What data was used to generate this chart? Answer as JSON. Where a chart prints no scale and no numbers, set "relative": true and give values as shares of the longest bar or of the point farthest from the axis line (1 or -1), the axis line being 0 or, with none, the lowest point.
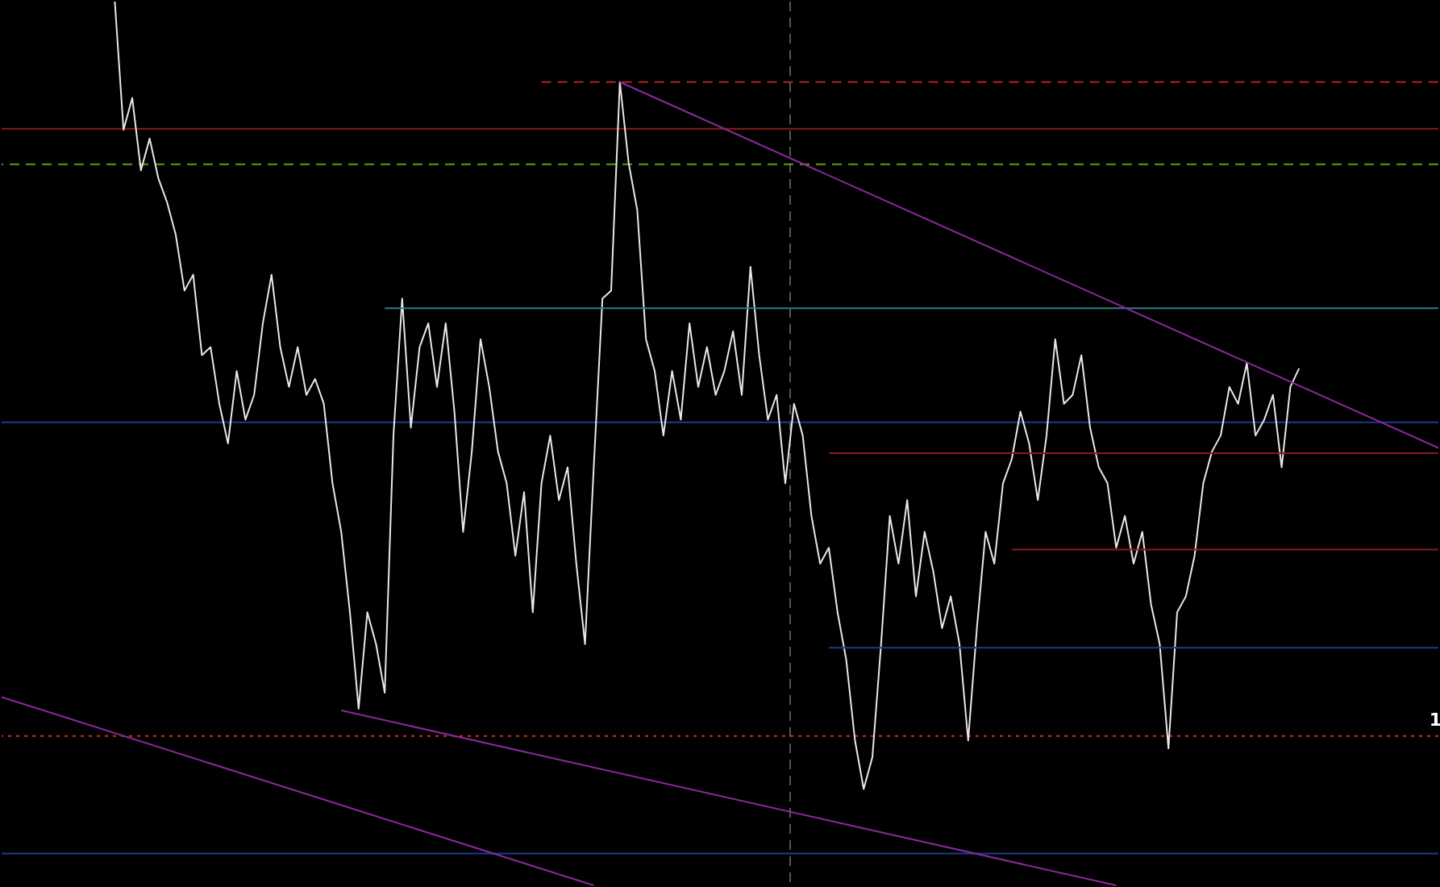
{
  "chart_data": {
    "type": "line",
    "relative": true,
    "line_style": "solid",
    "marker": "none",
    "categories": [
      null,
      null,
      null,
      null,
      null,
      null,
      null,
      null,
      null,
      null,
      null,
      null,
      null,
      null,
      null,
      null,
      null,
      null,
      null,
      null,
      null,
      null,
      null,
      null,
      null,
      null,
      null,
      null,
      null,
      null,
      null,
      null,
      null,
      null,
      null,
      null,
      null,
      null,
      null,
      null,
      null,
      null,
      null,
      null,
      null,
      null,
      null,
      null,
      null,
      null,
      null,
      null,
      null,
      null,
      null,
      null,
      null,
      null,
      null,
      null,
      null,
      null,
      null,
      null,
      null,
      null,
      null,
      null,
      null,
      null,
      null,
      null,
      null,
      null,
      null,
      null,
      null,
      null,
      null,
      null,
      null,
      null,
      null,
      null,
      null,
      null,
      null,
      null,
      null,
      null,
      null,
      null,
      null,
      null,
      null,
      null,
      null,
      null,
      null,
      null,
      null,
      null,
      null,
      null,
      null,
      null,
      null,
      null,
      null,
      null,
      null,
      null,
      null,
      null,
      null,
      null,
      null,
      null,
      null,
      null,
      null,
      null,
      null,
      null,
      null,
      null,
      null,
      null,
      null,
      null,
      null,
      null,
      null,
      null,
      null,
      null,
      null,
      null,
      null,
      null,
      null,
      null,
      null,
      null,
      null,
      null,
      null,
      null,
      null,
      null,
      null,
      null,
      null,
      null,
      null,
      null,
      null,
      null,
      null,
      null,
      null,
      null,
      null,
      null,
      null,
      null
    ],
    "series": [
      {
        "color": "#e8e8e8",
        "values": [
          null,
          null,
          null,
          null,
          null,
          null,
          null,
          null,
          null,
          null,
          null,
          null,
          null,
          1.0,
          0.855,
          0.891,
          0.809,
          0.845,
          0.8,
          0.773,
          0.736,
          0.673,
          0.691,
          0.6,
          0.609,
          0.545,
          0.5,
          0.582,
          0.527,
          0.555,
          0.636,
          0.691,
          0.609,
          0.564,
          0.609,
          0.555,
          0.573,
          0.545,
          0.455,
          0.4,
          0.309,
          0.2,
          0.309,
          0.273,
          0.218,
          0.509,
          0.664,
          0.518,
          0.609,
          0.636,
          0.564,
          0.636,
          0.536,
          0.4,
          0.491,
          0.618,
          0.564,
          0.491,
          0.455,
          0.373,
          0.445,
          0.309,
          0.455,
          0.509,
          0.436,
          0.473,
          0.364,
          0.273,
          0.473,
          0.664,
          0.673,
          0.909,
          0.818,
          0.764,
          0.618,
          0.582,
          0.509,
          0.582,
          0.527,
          0.636,
          0.564,
          0.609,
          0.555,
          0.582,
          0.627,
          0.555,
          0.7,
          0.6,
          0.527,
          0.555,
          0.455,
          0.545,
          0.509,
          0.418,
          0.364,
          0.382,
          0.309,
          0.255,
          0.164,
          0.109,
          0.145,
          0.273,
          0.418,
          0.364,
          0.436,
          0.327,
          0.4,
          0.355,
          0.291,
          0.327,
          0.273,
          0.164,
          0.291,
          0.4,
          0.364,
          0.455,
          0.482,
          0.536,
          0.5,
          0.436,
          0.509,
          0.618,
          0.545,
          0.555,
          0.6,
          0.518,
          0.473,
          0.455,
          0.382,
          0.418,
          0.364,
          0.4,
          0.318,
          0.273,
          0.155,
          0.309,
          0.327,
          0.373,
          0.455,
          0.491,
          0.509,
          0.564,
          0.545,
          0.591,
          0.509,
          0.527,
          0.555,
          0.473,
          0.564,
          0.585,
          null,
          null,
          null,
          null,
          null,
          null,
          null,
          null,
          null,
          null,
          null,
          null,
          null,
          null,
          null,
          null
        ]
      },
      {
        "color": "#b22222",
        "line_style": "dashed",
        "values": [
          null,
          null,
          null,
          null,
          null,
          null,
          null,
          null,
          null,
          null,
          null,
          null,
          null,
          null,
          null,
          null,
          null,
          null,
          null,
          null,
          null,
          null,
          null,
          null,
          null,
          null,
          null,
          null,
          null,
          null,
          null,
          null,
          null,
          null,
          null,
          null,
          null,
          null,
          null,
          null,
          null,
          null,
          null,
          null,
          null,
          null,
          null,
          null,
          null,
          null,
          null,
          null,
          null,
          null,
          null,
          null,
          null,
          null,
          null,
          null,
          null,
          null,
          0.909,
          null,
          null,
          null,
          null,
          null,
          null,
          null,
          null,
          null,
          null,
          null,
          null,
          null,
          null,
          null,
          null,
          null,
          null,
          null,
          null,
          null,
          null,
          null,
          null,
          null,
          null,
          null,
          null,
          null,
          null,
          null,
          null,
          null,
          null,
          null,
          null,
          null,
          null,
          null,
          null,
          null,
          null,
          null,
          null,
          null,
          null,
          null,
          null,
          null,
          null,
          null,
          null,
          null,
          null,
          null,
          null,
          null,
          null,
          null,
          null,
          null,
          null,
          null,
          null,
          null,
          null,
          null,
          null,
          null,
          null,
          null,
          null,
          null,
          null,
          null,
          null,
          null,
          null,
          null,
          null,
          null,
          null,
          null,
          null,
          null,
          null,
          null,
          null,
          null,
          null,
          null,
          null,
          null,
          null,
          null,
          null,
          null,
          null,
          null,
          null,
          null,
          null,
          0.909
        ]
      },
      {
        "color": "#2e7a8a",
        "values": [
          null,
          null,
          null,
          null,
          null,
          null,
          null,
          null,
          null,
          null,
          null,
          null,
          null,
          null,
          null,
          null,
          null,
          null,
          null,
          null,
          null,
          null,
          null,
          null,
          null,
          null,
          null,
          null,
          null,
          null,
          null,
          null,
          null,
          null,
          null,
          null,
          null,
          null,
          null,
          null,
          null,
          null,
          null,
          null,
          0.653,
          null,
          null,
          null,
          null,
          null,
          null,
          null,
          null,
          null,
          null,
          null,
          null,
          null,
          null,
          null,
          null,
          null,
          null,
          null,
          null,
          null,
          null,
          null,
          null,
          null,
          null,
          null,
          null,
          null,
          null,
          null,
          null,
          null,
          null,
          null,
          null,
          null,
          null,
          null,
          null,
          null,
          null,
          null,
          null,
          null,
          null,
          null,
          null,
          null,
          null,
          null,
          null,
          null,
          null,
          null,
          null,
          null,
          null,
          null,
          null,
          null,
          null,
          null,
          null,
          null,
          null,
          null,
          null,
          null,
          null,
          null,
          null,
          null,
          null,
          null,
          null,
          null,
          null,
          null,
          null,
          null,
          null,
          null,
          null,
          null,
          null,
          null,
          null,
          null,
          null,
          null,
          null,
          null,
          null,
          null,
          null,
          null,
          null,
          null,
          null,
          null,
          null,
          null,
          null,
          null,
          null,
          null,
          null,
          null,
          null,
          null,
          null,
          null,
          null,
          null,
          null,
          null,
          null,
          null,
          null,
          0.653
        ]
      },
      {
        "color": "#8b1a1a",
        "values": [
          null,
          null,
          null,
          null,
          null,
          null,
          null,
          null,
          null,
          null,
          null,
          null,
          null,
          null,
          null,
          null,
          null,
          null,
          null,
          null,
          null,
          null,
          null,
          null,
          null,
          null,
          null,
          null,
          null,
          null,
          null,
          null,
          null,
          null,
          null,
          null,
          null,
          null,
          null,
          null,
          null,
          null,
          null,
          null,
          null,
          null,
          null,
          null,
          null,
          null,
          null,
          null,
          null,
          null,
          null,
          null,
          null,
          null,
          null,
          null,
          null,
          null,
          null,
          null,
          null,
          null,
          null,
          null,
          null,
          null,
          null,
          null,
          null,
          null,
          null,
          null,
          null,
          null,
          null,
          null,
          null,
          null,
          null,
          null,
          null,
          null,
          null,
          null,
          null,
          null,
          null,
          null,
          null,
          null,
          null,
          0.489,
          null,
          null,
          null,
          null,
          null,
          null,
          null,
          null,
          null,
          null,
          null,
          null,
          null,
          null,
          null,
          null,
          null,
          null,
          null,
          null,
          null,
          null,
          null,
          null,
          null,
          null,
          null,
          null,
          null,
          null,
          null,
          null,
          null,
          null,
          null,
          null,
          null,
          null,
          null,
          null,
          null,
          null,
          null,
          null,
          null,
          null,
          null,
          null,
          null,
          null,
          null,
          null,
          null,
          null,
          null,
          null,
          null,
          null,
          null,
          null,
          null,
          null,
          null,
          null,
          null,
          null,
          null,
          null,
          null,
          0.489
        ]
      },
      {
        "color": "#1f3a8a",
        "values": [
          null,
          null,
          null,
          null,
          null,
          null,
          null,
          null,
          null,
          null,
          null,
          null,
          null,
          null,
          null,
          null,
          null,
          null,
          null,
          null,
          null,
          null,
          null,
          null,
          null,
          null,
          null,
          null,
          null,
          null,
          null,
          null,
          null,
          null,
          null,
          null,
          null,
          null,
          null,
          null,
          null,
          null,
          null,
          null,
          null,
          null,
          null,
          null,
          null,
          null,
          null,
          null,
          null,
          null,
          null,
          null,
          null,
          null,
          null,
          null,
          null,
          null,
          null,
          null,
          null,
          null,
          null,
          null,
          null,
          null,
          null,
          null,
          null,
          null,
          null,
          null,
          null,
          null,
          null,
          null,
          null,
          null,
          null,
          null,
          null,
          null,
          null,
          null,
          null,
          null,
          null,
          null,
          null,
          null,
          null,
          0.269,
          null,
          null,
          null,
          null,
          null,
          null,
          null,
          null,
          null,
          null,
          null,
          null,
          null,
          null,
          null,
          null,
          null,
          null,
          null,
          null,
          null,
          null,
          null,
          null,
          null,
          null,
          null,
          null,
          null,
          null,
          null,
          null,
          null,
          null,
          null,
          null,
          null,
          null,
          null,
          null,
          null,
          null,
          null,
          null,
          null,
          null,
          null,
          null,
          null,
          null,
          null,
          null,
          null,
          null,
          null,
          null,
          null,
          null,
          null,
          null,
          null,
          null,
          null,
          null,
          null,
          null,
          null,
          null,
          null,
          0.269
        ]
      },
      {
        "color": "#8b1a1a",
        "values": [
          null,
          null,
          null,
          null,
          null,
          null,
          null,
          null,
          null,
          null,
          null,
          null,
          null,
          null,
          null,
          null,
          null,
          null,
          null,
          null,
          null,
          null,
          null,
          null,
          null,
          null,
          null,
          null,
          null,
          null,
          null,
          null,
          null,
          null,
          null,
          null,
          null,
          null,
          null,
          null,
          null,
          null,
          null,
          null,
          null,
          null,
          null,
          null,
          null,
          null,
          null,
          null,
          null,
          null,
          null,
          null,
          null,
          null,
          null,
          null,
          null,
          null,
          null,
          null,
          null,
          null,
          null,
          null,
          null,
          null,
          null,
          null,
          null,
          null,
          null,
          null,
          null,
          null,
          null,
          null,
          null,
          null,
          null,
          null,
          null,
          null,
          null,
          null,
          null,
          null,
          null,
          null,
          null,
          null,
          null,
          null,
          null,
          null,
          null,
          null,
          null,
          null,
          null,
          null,
          null,
          null,
          null,
          null,
          null,
          null,
          null,
          null,
          null,
          null,
          null,
          null,
          0.38,
          null,
          null,
          null,
          null,
          null,
          null,
          null,
          null,
          null,
          null,
          null,
          null,
          null,
          null,
          null,
          null,
          null,
          null,
          null,
          null,
          null,
          null,
          null,
          null,
          null,
          null,
          null,
          null,
          null,
          null,
          null,
          null,
          null,
          null,
          null,
          null,
          null,
          null,
          null,
          null,
          null,
          null,
          null,
          null,
          null,
          null,
          null,
          null,
          0.38
        ]
      },
      {
        "color": "#8a2a9a",
        "values": [
          null,
          null,
          null,
          null,
          null,
          null,
          null,
          null,
          null,
          null,
          null,
          null,
          null,
          null,
          null,
          null,
          null,
          null,
          null,
          null,
          null,
          null,
          null,
          null,
          null,
          null,
          null,
          null,
          null,
          null,
          null,
          null,
          null,
          null,
          null,
          null,
          null,
          null,
          null,
          null,
          null,
          null,
          null,
          null,
          null,
          null,
          null,
          null,
          null,
          null,
          null,
          null,
          null,
          null,
          null,
          null,
          null,
          null,
          null,
          null,
          null,
          null,
          null,
          null,
          null,
          null,
          null,
          null,
          null,
          null,
          null,
          0.909,
          null,
          null,
          null,
          null,
          null,
          null,
          null,
          null,
          null,
          null,
          null,
          null,
          null,
          null,
          null,
          null,
          null,
          null,
          null,
          null,
          null,
          null,
          null,
          null,
          null,
          null,
          null,
          null,
          null,
          null,
          null,
          null,
          null,
          null,
          null,
          null,
          null,
          null,
          null,
          null,
          null,
          null,
          null,
          null,
          null,
          null,
          null,
          null,
          null,
          null,
          null,
          null,
          null,
          null,
          null,
          null,
          null,
          null,
          null,
          null,
          null,
          null,
          null,
          null,
          null,
          null,
          null,
          null,
          null,
          null,
          null,
          null,
          null,
          null,
          null,
          null,
          null,
          null,
          null,
          null,
          null,
          null,
          null,
          null,
          null,
          null,
          null,
          null,
          null,
          null,
          null,
          null,
          null,
          0.495
        ]
      },
      {
        "color": "#8a2a9a",
        "values": [
          0.213,
          null,
          null,
          null,
          null,
          null,
          null,
          null,
          null,
          null,
          null,
          null,
          null,
          null,
          null,
          null,
          null,
          null,
          null,
          null,
          null,
          null,
          null,
          null,
          null,
          null,
          null,
          null,
          null,
          null,
          null,
          null,
          null,
          null,
          null,
          null,
          null,
          null,
          null,
          null,
          null,
          null,
          null,
          null,
          null,
          null,
          null,
          null,
          null,
          null,
          null,
          null,
          null,
          null,
          null,
          null,
          null,
          null,
          null,
          null,
          null,
          null,
          null,
          null,
          null,
          null,
          null,
          null,
          0.0,
          null,
          null,
          null,
          null,
          null,
          null,
          null,
          null,
          null,
          null,
          null,
          null,
          null,
          null,
          null,
          null,
          null,
          null,
          null,
          null,
          null,
          null,
          null,
          null,
          null,
          null,
          null,
          null,
          null,
          null,
          null,
          null,
          null,
          null,
          null,
          null,
          null,
          null,
          null,
          null,
          null,
          null,
          null,
          null,
          null,
          null,
          null,
          null,
          null,
          null,
          null,
          null,
          null,
          null,
          null,
          null,
          null,
          null,
          null,
          null,
          null,
          null,
          null,
          null,
          null,
          null,
          null,
          null,
          null,
          null,
          null,
          null,
          null,
          null,
          null,
          null,
          null,
          null,
          null,
          null,
          null,
          null,
          null,
          null,
          null,
          null,
          null,
          null,
          null,
          null,
          null,
          null,
          null,
          null,
          null,
          null,
          null
        ]
      },
      {
        "color": "#8a2a9a",
        "values": [
          null,
          null,
          null,
          null,
          null,
          null,
          null,
          null,
          null,
          null,
          null,
          null,
          null,
          null,
          null,
          null,
          null,
          null,
          null,
          null,
          null,
          null,
          null,
          null,
          null,
          null,
          null,
          null,
          null,
          null,
          null,
          null,
          null,
          null,
          null,
          null,
          null,
          null,
          null,
          0.198,
          null,
          null,
          null,
          null,
          null,
          null,
          null,
          null,
          null,
          null,
          null,
          null,
          null,
          null,
          null,
          null,
          null,
          null,
          null,
          null,
          null,
          null,
          null,
          null,
          null,
          null,
          null,
          null,
          null,
          null,
          null,
          null,
          null,
          null,
          null,
          null,
          null,
          null,
          null,
          null,
          null,
          null,
          null,
          null,
          null,
          null,
          null,
          null,
          null,
          null,
          null,
          null,
          null,
          null,
          null,
          null,
          null,
          null,
          null,
          null,
          null,
          null,
          null,
          null,
          null,
          null,
          null,
          null,
          null,
          null,
          null,
          null,
          null,
          null,
          null,
          null,
          null,
          null,
          null,
          null,
          null,
          null,
          null,
          null,
          null,
          null,
          null,
          null,
          0.0,
          null,
          null,
          null,
          null,
          null,
          null,
          null,
          null,
          null,
          null,
          null,
          null,
          null,
          null,
          null,
          null,
          null,
          null,
          null,
          null,
          null,
          null,
          null,
          null,
          null,
          null,
          null,
          null,
          null,
          null,
          null,
          null,
          null,
          null,
          null,
          null,
          null
        ]
      }
    ],
    "ref_lines": [
      {
        "axis": "y",
        "value": 0.856,
        "color": "#8b1a1a"
      },
      {
        "axis": "y",
        "value": 0.816,
        "color": "#5a9a1a",
        "line_style": "dashed"
      },
      {
        "axis": "y",
        "value": 0.524,
        "color": "#1f3a8a"
      },
      {
        "axis": "y",
        "value": 0.169,
        "color": "#d03010",
        "line_style": "dotted"
      },
      {
        "axis": "y",
        "value": 0.036,
        "color": "#1f3a8a"
      }
    ],
    "annotations": [
      "1"
    ]
  }
}
